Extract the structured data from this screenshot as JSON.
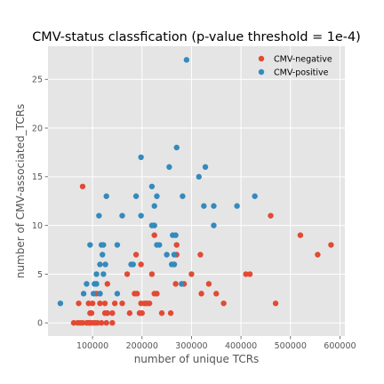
{
  "chart_data": {
    "type": "scatter",
    "title": "CMV-status classfication (p-value threshold = 1e-4)",
    "xlabel": "number of unique TCRs",
    "ylabel": "number of CMV-associated_TCRs",
    "xlim": [
      10000,
      610000
    ],
    "ylim": [
      -1.35,
      28.4
    ],
    "xticks": [
      100000,
      200000,
      300000,
      400000,
      500000,
      600000
    ],
    "xtick_labels": [
      "100000",
      "200000",
      "300000",
      "400000",
      "500000",
      "600000"
    ],
    "yticks": [
      0,
      5,
      10,
      15,
      20,
      25
    ],
    "ytick_labels": [
      "0",
      "5",
      "10",
      "15",
      "20",
      "25"
    ],
    "grid": true,
    "legend_position": "top-right",
    "colors": {
      "background": "#e5e5e5",
      "grid": "#ffffff",
      "negative": "#e24a33",
      "positive": "#348abd"
    },
    "series": [
      {
        "name": "CMV-negative",
        "color": "#e24a33",
        "points": [
          [
            62000,
            0
          ],
          [
            70000,
            0
          ],
          [
            75000,
            0
          ],
          [
            80000,
            0
          ],
          [
            88000,
            0
          ],
          [
            92000,
            0
          ],
          [
            95000,
            0
          ],
          [
            100000,
            0
          ],
          [
            105000,
            0
          ],
          [
            110000,
            0
          ],
          [
            118000,
            0
          ],
          [
            128000,
            0
          ],
          [
            140000,
            0
          ],
          [
            95000,
            1
          ],
          [
            98000,
            1
          ],
          [
            125000,
            1
          ],
          [
            130000,
            1
          ],
          [
            140000,
            1
          ],
          [
            175000,
            1
          ],
          [
            195000,
            1
          ],
          [
            200000,
            1
          ],
          [
            240000,
            1
          ],
          [
            258000,
            1
          ],
          [
            72000,
            2
          ],
          [
            92000,
            2
          ],
          [
            100000,
            2
          ],
          [
            115000,
            2
          ],
          [
            125000,
            2
          ],
          [
            145000,
            2
          ],
          [
            160000,
            2
          ],
          [
            198000,
            2
          ],
          [
            205000,
            2
          ],
          [
            210000,
            2
          ],
          [
            215000,
            2
          ],
          [
            365000,
            2
          ],
          [
            470000,
            2
          ],
          [
            108000,
            3
          ],
          [
            115000,
            3
          ],
          [
            185000,
            3
          ],
          [
            190000,
            3
          ],
          [
            225000,
            3
          ],
          [
            230000,
            3
          ],
          [
            320000,
            3
          ],
          [
            350000,
            3
          ],
          [
            130000,
            4
          ],
          [
            268000,
            4
          ],
          [
            285000,
            4
          ],
          [
            335000,
            4
          ],
          [
            170000,
            5
          ],
          [
            220000,
            5
          ],
          [
            300000,
            5
          ],
          [
            410000,
            5
          ],
          [
            418000,
            5
          ],
          [
            198000,
            6
          ],
          [
            265000,
            6
          ],
          [
            188000,
            7
          ],
          [
            270000,
            7
          ],
          [
            318000,
            7
          ],
          [
            555000,
            7
          ],
          [
            270000,
            8
          ],
          [
            582000,
            8
          ],
          [
            225000,
            9
          ],
          [
            520000,
            9
          ],
          [
            460000,
            11
          ],
          [
            80000,
            14
          ]
        ]
      },
      {
        "name": "CMV-positive",
        "color": "#348abd",
        "points": [
          [
            35000,
            2
          ],
          [
            82000,
            3
          ],
          [
            102000,
            3
          ],
          [
            115000,
            3
          ],
          [
            150000,
            3
          ],
          [
            88000,
            4
          ],
          [
            104000,
            4
          ],
          [
            108000,
            4
          ],
          [
            280000,
            4
          ],
          [
            108000,
            5
          ],
          [
            122000,
            5
          ],
          [
            115000,
            6
          ],
          [
            126000,
            6
          ],
          [
            178000,
            6
          ],
          [
            182000,
            6
          ],
          [
            260000,
            6
          ],
          [
            265000,
            6
          ],
          [
            120000,
            7
          ],
          [
            250000,
            7
          ],
          [
            265000,
            7
          ],
          [
            95000,
            8
          ],
          [
            118000,
            8
          ],
          [
            122000,
            8
          ],
          [
            150000,
            8
          ],
          [
            230000,
            8
          ],
          [
            235000,
            8
          ],
          [
            262000,
            9
          ],
          [
            268000,
            9
          ],
          [
            220000,
            10
          ],
          [
            225000,
            10
          ],
          [
            345000,
            10
          ],
          [
            113000,
            11
          ],
          [
            160000,
            11
          ],
          [
            198000,
            11
          ],
          [
            225000,
            12
          ],
          [
            325000,
            12
          ],
          [
            345000,
            12
          ],
          [
            392000,
            12
          ],
          [
            128000,
            13
          ],
          [
            188000,
            13
          ],
          [
            230000,
            13
          ],
          [
            282000,
            13
          ],
          [
            428000,
            13
          ],
          [
            220000,
            14
          ],
          [
            315000,
            15
          ],
          [
            255000,
            16
          ],
          [
            328000,
            16
          ],
          [
            198000,
            17
          ],
          [
            270000,
            18
          ],
          [
            290000,
            27
          ]
        ]
      }
    ]
  }
}
